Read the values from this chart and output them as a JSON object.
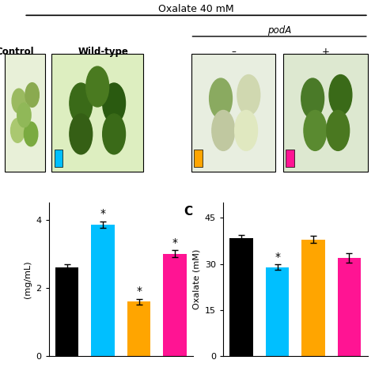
{
  "title_oxalate": "Oxalate 40 mM",
  "title_poda": "podA",
  "col_labels": [
    "Control",
    "Wild-type",
    "–",
    "+"
  ],
  "bar_colors": [
    "#000000",
    "#00BFFF",
    "#FFA500",
    "#FF1493"
  ],
  "bar_B_values": [
    2.6,
    3.85,
    1.6,
    3.0
  ],
  "bar_B_errors": [
    0.1,
    0.1,
    0.08,
    0.1
  ],
  "bar_B_ylabel": "(mg/mL)",
  "bar_B_yticks": [
    0,
    2,
    4
  ],
  "bar_B_ylim": [
    0,
    4.5
  ],
  "bar_B_significant": [
    false,
    true,
    true,
    true
  ],
  "bar_C_values": [
    38.5,
    29.0,
    38.0,
    32.0
  ],
  "bar_C_errors": [
    1.0,
    1.0,
    1.2,
    1.5
  ],
  "bar_C_ylabel": "Oxalate (mM)",
  "bar_C_yticks": [
    0,
    15,
    30,
    45
  ],
  "bar_C_ylim": [
    0,
    50
  ],
  "bar_C_label": "C",
  "bar_C_significant": [
    false,
    true,
    false,
    false
  ],
  "color_squares": [
    "none",
    "#00BFFF",
    "#FFA500",
    "#FF1493"
  ],
  "plant_bg": [
    "#e8f0d8",
    "#ddeec0",
    "#e8eee0",
    "#dde8d0"
  ],
  "bg_color": "#ffffff"
}
